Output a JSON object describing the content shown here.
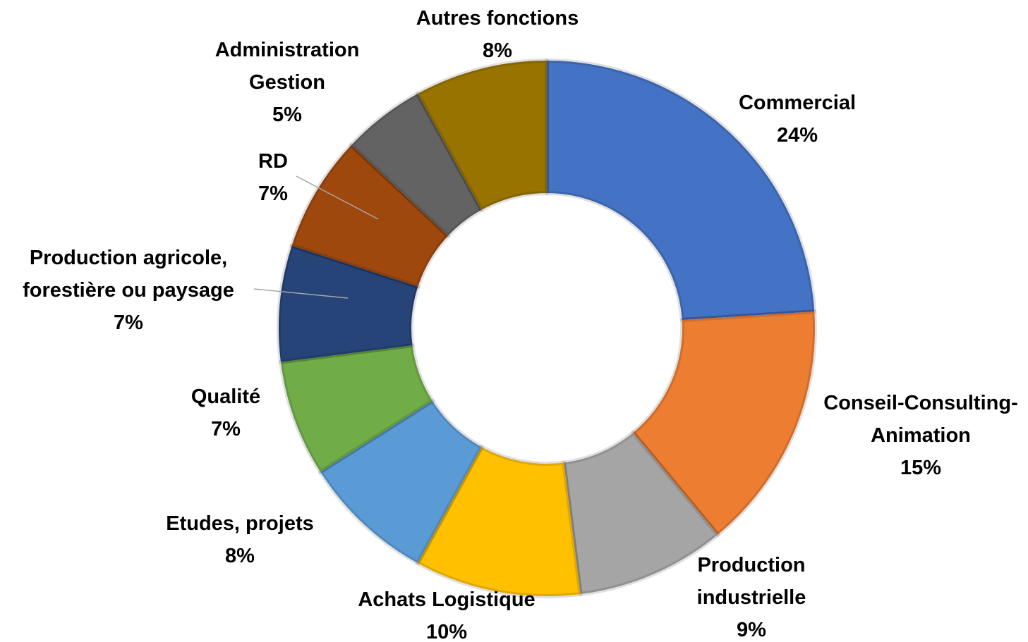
{
  "chart_data": {
    "type": "donut",
    "categories": [
      "Commercial",
      "Conseil-Consulting-\nAnimation",
      "Production\nindustrielle",
      "Achats Logistique",
      "Etudes, projets",
      "Qualité",
      "Production agricole,\nforestière ou paysage",
      "RD",
      "Administration\nGestion",
      "Autres fonctions"
    ],
    "values": [
      24,
      15,
      9,
      10,
      8,
      7,
      7,
      7,
      5,
      8
    ],
    "value_labels": [
      "24%",
      "15%",
      "9%",
      "10%",
      "8%",
      "7%",
      "7%",
      "7%",
      "5%",
      "8%"
    ],
    "colors": [
      "#4472c4",
      "#ed7d31",
      "#a5a5a5",
      "#ffc000",
      "#5b9bd5",
      "#70ad47",
      "#264478",
      "#9e480e",
      "#636363",
      "#997300"
    ]
  }
}
